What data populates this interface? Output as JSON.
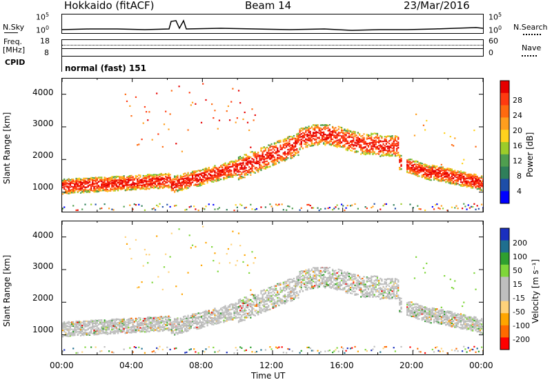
{
  "header": {
    "title": "Hokkaido (fitACF)",
    "beam": "Beam 14",
    "date": "23/Mar/2016"
  },
  "noise_panel": {
    "left_label": "N.Sky",
    "right_label": "N.Search",
    "left_ticks": [
      "10^5",
      "10^0"
    ],
    "right_ticks": [
      "10^5",
      "10^0"
    ]
  },
  "freq_panel": {
    "left_label_line1": "Freq.",
    "left_label_line2": "[MHz]",
    "left_ticks": [
      "18",
      "8"
    ],
    "right_label": "Nave",
    "right_ticks": [
      "60",
      "0"
    ]
  },
  "cpid": {
    "label": "CPID",
    "mode": "normal (fast) 151"
  },
  "x_axis": {
    "label": "Time UT",
    "ticks": [
      "00:00",
      "04:00",
      "08:00",
      "12:00",
      "16:00",
      "20:00",
      "00:00"
    ]
  },
  "colors": {
    "power_scale": [
      "#0000ff",
      "#1e4ea8",
      "#2f7f5a",
      "#4f9e4f",
      "#9ccc2a",
      "#ffd21e",
      "#ff9e1e",
      "#ff6a10",
      "#ff3a10",
      "#e60000"
    ],
    "velocity_scale": [
      "#ff0000",
      "#ff6a00",
      "#ffa500",
      "#ffd27a",
      "#bebebe",
      "#bebebe",
      "#7fd63a",
      "#2fa02f",
      "#1f6f8f",
      "#1a2fbf"
    ]
  },
  "chart_data": [
    {
      "type": "heatmap",
      "title": "",
      "xlabel": "",
      "ylabel": "Slant Range [km]",
      "yticks": [
        "1000",
        "2000",
        "3000",
        "4000"
      ],
      "ylim": [
        400,
        4500
      ],
      "colorbar_label": "Power [dB]",
      "colorbar_ticks": [
        "28",
        "24",
        "20",
        "16",
        "12",
        "8",
        "4"
      ],
      "colorbar_range": [
        0,
        32
      ]
    },
    {
      "type": "heatmap",
      "title": "",
      "xlabel": "Time UT",
      "ylabel": "Slant Range [km]",
      "yticks": [
        "1000",
        "2000",
        "3000",
        "4000"
      ],
      "ylim": [
        400,
        4500
      ],
      "colorbar_label": "Velocity [m s⁻¹]",
      "colorbar_ticks": [
        "200",
        "100",
        "50",
        "15",
        "-15",
        "-50",
        "-100",
        "-200"
      ],
      "colorbar_range": [
        -250,
        250
      ]
    }
  ]
}
